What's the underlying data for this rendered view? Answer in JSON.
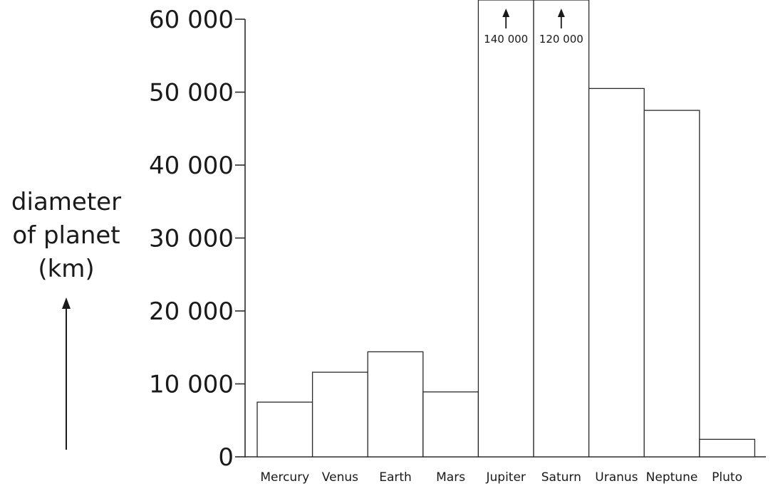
{
  "chart_data": {
    "type": "bar",
    "title": "",
    "ylabel": [
      "diameter",
      "of planet",
      "(km)"
    ],
    "xlabel": "",
    "ylim": [
      0,
      60000
    ],
    "yticks": [
      0,
      10000,
      20000,
      30000,
      40000,
      50000,
      60000
    ],
    "ytick_labels": [
      "0",
      "10 000",
      "20 000",
      "30 000",
      "40 000",
      "50 000",
      "60 000"
    ],
    "grid": false,
    "categories": [
      "Mercury",
      "Venus",
      "Earth",
      "Mars",
      "Jupiter",
      "Saturn",
      "Uranus",
      "Neptune",
      "Pluto"
    ],
    "values": [
      7500,
      11600,
      14400,
      8900,
      140000,
      120000,
      50500,
      47500,
      2400
    ],
    "value_labels": [
      "",
      "",
      "",
      "",
      "140 000",
      "120 000",
      "",
      "",
      ""
    ],
    "bar_fill": "#ffffff",
    "bar_stroke": "#2a2a2a"
  }
}
